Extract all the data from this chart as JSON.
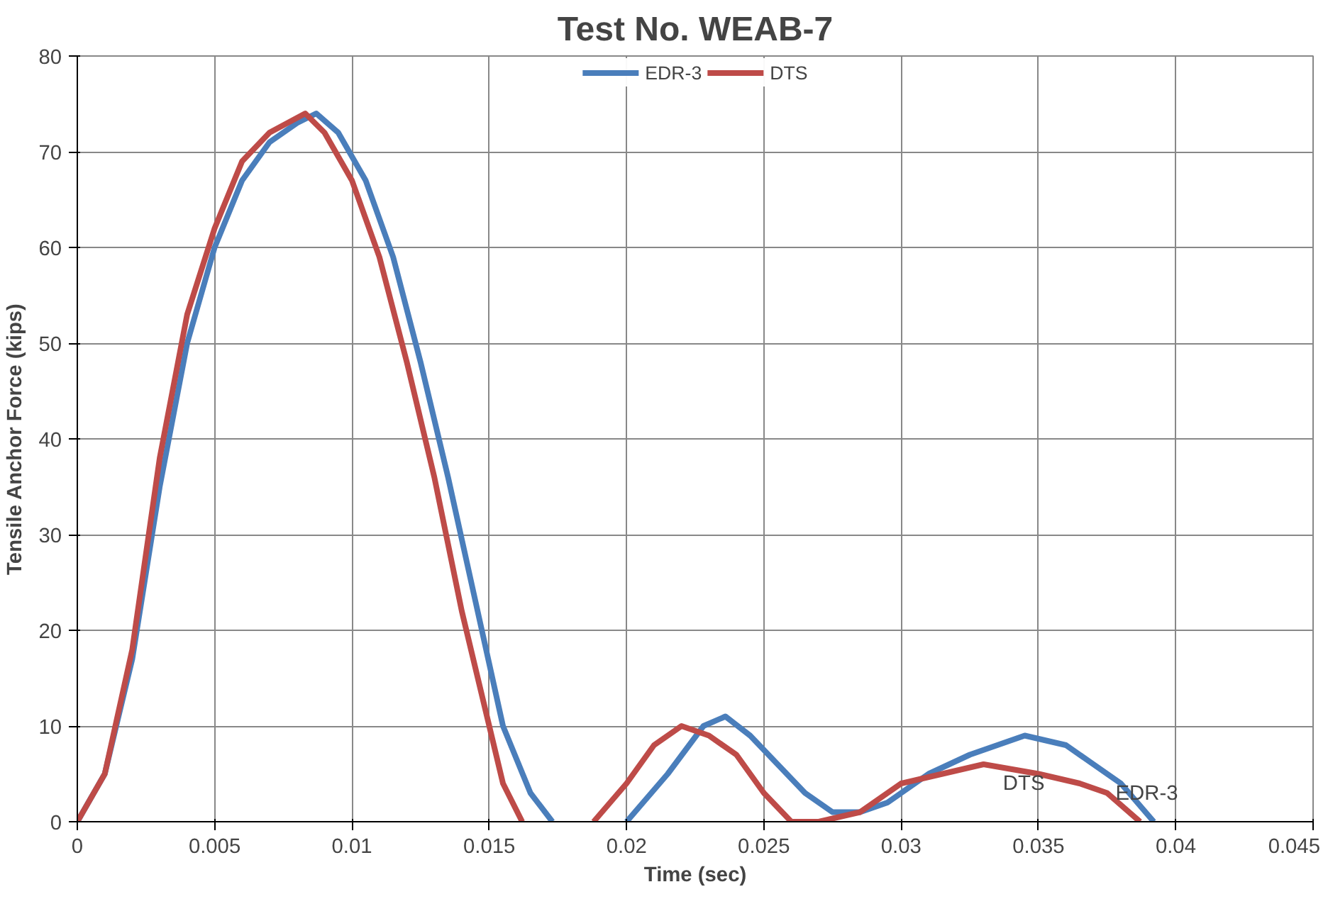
{
  "chart_data": {
    "type": "line",
    "title": "Test No. WEAB-7",
    "xlabel": "Time (sec)",
    "ylabel": "Tensile Anchor Force (kips)",
    "xlim": [
      0,
      0.045
    ],
    "xticks": [
      0,
      0.005,
      0.01,
      0.015,
      0.02,
      0.025,
      0.03,
      0.035,
      0.04,
      0.045
    ],
    "ylim": [
      0,
      80
    ],
    "yticks": [
      0,
      10,
      20,
      30,
      40,
      50,
      60,
      70,
      80
    ],
    "grid": true,
    "legend": "top",
    "marker": "none",
    "line_style": "solid",
    "series": [
      {
        "name": "EDR-3",
        "color": "#4a7ebb",
        "x": [
          0,
          0.001,
          0.002,
          0.003,
          0.004,
          0.005,
          0.006,
          0.007,
          0.008,
          0.0087,
          0.0095,
          0.0105,
          0.0115,
          0.0125,
          0.0135,
          0.0145,
          0.0155,
          0.0165,
          0.0173,
          null,
          0.02,
          0.0215,
          0.0228,
          0.0236,
          0.0245,
          0.0255,
          0.0265,
          0.0275,
          0.0285,
          0.0295,
          0.031,
          0.0325,
          0.0345,
          0.036,
          0.037,
          0.038,
          0.0392
        ],
        "values": [
          0,
          5,
          17,
          35,
          50,
          60,
          67,
          71,
          73,
          74,
          72,
          67,
          59,
          48,
          36,
          23,
          10,
          3,
          0,
          null,
          0,
          5,
          10,
          11,
          9,
          6,
          3,
          1,
          1,
          2,
          5,
          7,
          9,
          8,
          6,
          4,
          0
        ]
      },
      {
        "name": "DTS",
        "color": "#be4b48",
        "x": [
          0,
          0.001,
          0.002,
          0.003,
          0.004,
          0.005,
          0.006,
          0.007,
          0.0083,
          0.009,
          0.01,
          0.011,
          0.012,
          0.013,
          0.014,
          0.015,
          0.0155,
          0.0162,
          null,
          0.0188,
          0.02,
          0.021,
          0.022,
          0.023,
          0.024,
          0.025,
          0.026,
          0.027,
          0.0285,
          0.03,
          0.0315,
          0.033,
          0.035,
          0.0365,
          0.0375,
          0.0387
        ],
        "values": [
          0,
          5,
          18,
          38,
          53,
          62,
          69,
          72,
          74,
          72,
          67,
          59,
          48,
          36,
          22,
          10,
          4,
          0,
          null,
          0,
          4,
          8,
          10,
          9,
          7,
          3,
          0,
          0,
          1,
          4,
          5,
          6,
          5,
          4,
          3,
          0
        ]
      }
    ],
    "annotations": [
      {
        "text": "EDR-3",
        "x": 0.0376,
        "y": 5
      },
      {
        "text": "DTS",
        "x": 0.0335,
        "y": 6
      }
    ]
  }
}
